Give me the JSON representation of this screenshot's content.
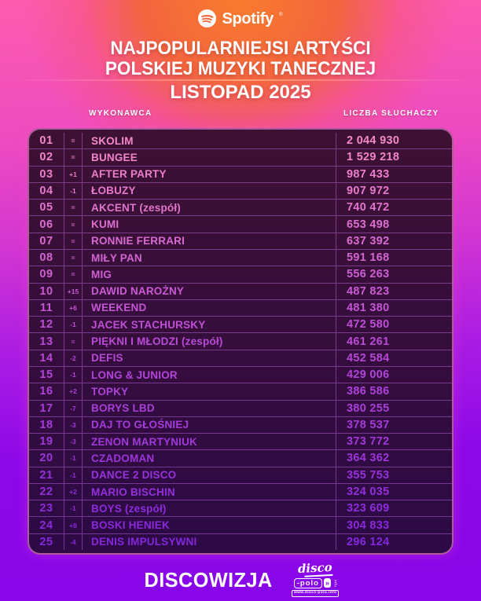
{
  "header": {
    "brand": {
      "name": "Spotify",
      "trademark": "®"
    },
    "title_line1": "NAJPOPULARNIEJSI ARTYŚCI",
    "title_line2": "POLSKIEJ MUZYKI TANECZNEJ",
    "subtitle": "LISTOPAD 2025"
  },
  "table": {
    "columns": {
      "artist": "WYKONAWCA",
      "listeners": "LICZBA SŁUCHACZY"
    }
  },
  "chart_data": {
    "type": "table",
    "title": "NAJPOPULARNIEJSI ARTYŚCI POLSKIEJ MUZYKI TANECZNEJ",
    "subtitle": "LISTOPAD 2025",
    "columns": [
      "rank",
      "change",
      "WYKONAWCA",
      "LICZBA SŁUCHACZY"
    ],
    "rows": [
      [
        1,
        "=",
        "SKOLIM",
        2044930
      ],
      [
        2,
        "=",
        "BUNGEE",
        1529218
      ],
      [
        3,
        "+1",
        "AFTER PARTY",
        987433
      ],
      [
        4,
        "-1",
        "ŁOBUZY",
        907972
      ],
      [
        5,
        "=",
        "AKCENT (zespół)",
        740472
      ],
      [
        6,
        "=",
        "KUMI",
        653498
      ],
      [
        7,
        "=",
        "RONNIE FERRARI",
        637392
      ],
      [
        8,
        "=",
        "MIŁY PAN",
        591168
      ],
      [
        9,
        "=",
        "MIG",
        556263
      ],
      [
        10,
        "+15",
        "DAWID NAROŻNY",
        487823
      ],
      [
        11,
        "+6",
        "WEEKEND",
        481380
      ],
      [
        12,
        "-1",
        "JACEK STACHURSKY",
        472580
      ],
      [
        13,
        "=",
        "PIĘKNI I MŁODZI (zespół)",
        461261
      ],
      [
        14,
        "-2",
        "DEFIS",
        452584
      ],
      [
        15,
        "-1",
        "LONG & JUNIOR",
        429006
      ],
      [
        16,
        "+2",
        "TOPKY",
        386586
      ],
      [
        17,
        "-7",
        "BORYS LBD",
        380255
      ],
      [
        18,
        "-3",
        "DAJ TO GŁOŚNIEJ",
        378537
      ],
      [
        19,
        "-3",
        "ZENON MARTYNIUK",
        373772
      ],
      [
        20,
        "-1",
        "CZADOMAN",
        364362
      ],
      [
        21,
        "-1",
        "DANCE 2 DISCO",
        355753
      ],
      [
        22,
        "+2",
        "MARIO BISCHIN",
        324035
      ],
      [
        23,
        "-1",
        "BOYS (zespół)",
        323609
      ],
      [
        24,
        "+8",
        "BOSKI HENIEK",
        304833
      ],
      [
        25,
        "-4",
        "DENIS IMPULSYWNI",
        296124
      ]
    ]
  },
  "footer": {
    "discowizja": "DISCOWIZJA",
    "disco_polo": {
      "script": "disco",
      "box": "-polo",
      "chevrons": "»",
      "vertical": "info",
      "url": "www.disco-polo.info"
    }
  },
  "colors": {
    "accent_pink": "#fc5cae",
    "accent_magenta": "#d336d2",
    "accent_purple": "#8806e8",
    "table_bg_top": "#3d1133",
    "table_bg_bottom": "#2d0a46",
    "table_border": "rgba(255,142,222,0.6)",
    "grid_line": "rgba(214,120,255,0.42)",
    "title_text": "#ffffff",
    "row_text_stops": [
      "#f689c9",
      "#bb4ad8",
      "#8526dc"
    ]
  }
}
